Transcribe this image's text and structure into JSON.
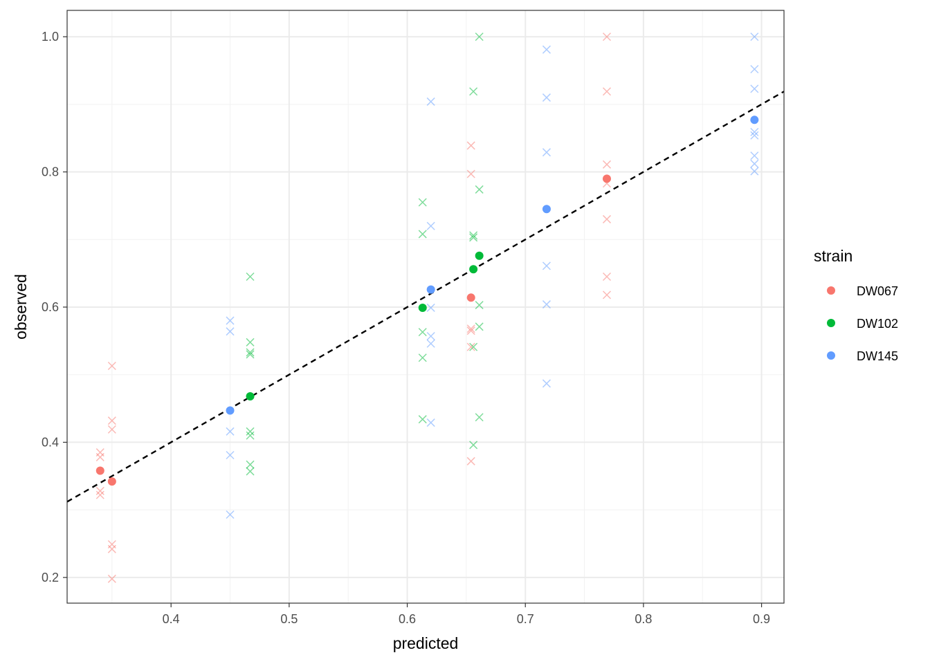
{
  "chart_data": {
    "type": "scatter",
    "title": "",
    "xlabel": "predicted",
    "ylabel": "observed",
    "xlim": [
      0.312,
      0.919
    ],
    "ylim": [
      0.162,
      1.039
    ],
    "x_ticks": [
      {
        "value": 0.4,
        "label": "0.4"
      },
      {
        "value": 0.5,
        "label": "0.5"
      },
      {
        "value": 0.6,
        "label": "0.6"
      },
      {
        "value": 0.7,
        "label": "0.7"
      },
      {
        "value": 0.8,
        "label": "0.8"
      },
      {
        "value": 0.9,
        "label": "0.9"
      }
    ],
    "y_ticks": [
      {
        "value": 0.2,
        "label": "0.2"
      },
      {
        "value": 0.4,
        "label": "0.4"
      },
      {
        "value": 0.6,
        "label": "0.6"
      },
      {
        "value": 0.8,
        "label": "0.8"
      },
      {
        "value": 1.0,
        "label": "1.0"
      }
    ],
    "grid": true,
    "legend": {
      "title": "strain",
      "position": "right"
    },
    "reference_line": {
      "style": "dashed",
      "color": "#000000",
      "slope": 1,
      "intercept": 0
    },
    "series": [
      {
        "name": "DW067",
        "color": "#F8766D",
        "means": [
          [
            0.34,
            0.358
          ],
          [
            0.35,
            0.342
          ],
          [
            0.654,
            0.614
          ],
          [
            0.769,
            0.79
          ]
        ],
        "replicates": [
          [
            0.34,
            0.385
          ],
          [
            0.34,
            0.378
          ],
          [
            0.34,
            0.328
          ],
          [
            0.34,
            0.322
          ],
          [
            0.35,
            0.513
          ],
          [
            0.35,
            0.432
          ],
          [
            0.35,
            0.419
          ],
          [
            0.35,
            0.249
          ],
          [
            0.35,
            0.242
          ],
          [
            0.35,
            0.198
          ],
          [
            0.654,
            0.839
          ],
          [
            0.654,
            0.797
          ],
          [
            0.654,
            0.568
          ],
          [
            0.654,
            0.565
          ],
          [
            0.654,
            0.541
          ],
          [
            0.654,
            0.372
          ],
          [
            0.769,
            1.0
          ],
          [
            0.769,
            0.919
          ],
          [
            0.769,
            0.811
          ],
          [
            0.769,
            0.783
          ],
          [
            0.769,
            0.73
          ],
          [
            0.769,
            0.645
          ],
          [
            0.769,
            0.618
          ]
        ]
      },
      {
        "name": "DW102",
        "color": "#00BA38",
        "means": [
          [
            0.467,
            0.468
          ],
          [
            0.613,
            0.599
          ],
          [
            0.656,
            0.656
          ],
          [
            0.661,
            0.676
          ]
        ],
        "replicates": [
          [
            0.467,
            0.645
          ],
          [
            0.467,
            0.548
          ],
          [
            0.467,
            0.533
          ],
          [
            0.467,
            0.53
          ],
          [
            0.467,
            0.416
          ],
          [
            0.467,
            0.41
          ],
          [
            0.467,
            0.367
          ],
          [
            0.467,
            0.357
          ],
          [
            0.613,
            0.755
          ],
          [
            0.613,
            0.708
          ],
          [
            0.613,
            0.563
          ],
          [
            0.613,
            0.525
          ],
          [
            0.613,
            0.434
          ],
          [
            0.656,
            0.919
          ],
          [
            0.656,
            0.706
          ],
          [
            0.656,
            0.703
          ],
          [
            0.656,
            0.541
          ],
          [
            0.656,
            0.396
          ],
          [
            0.661,
            1.0
          ],
          [
            0.661,
            0.774
          ],
          [
            0.661,
            0.603
          ],
          [
            0.661,
            0.571
          ],
          [
            0.661,
            0.437
          ]
        ]
      },
      {
        "name": "DW145",
        "color": "#619CFF",
        "means": [
          [
            0.45,
            0.447
          ],
          [
            0.62,
            0.626
          ],
          [
            0.718,
            0.745
          ],
          [
            0.894,
            0.877
          ]
        ],
        "replicates": [
          [
            0.45,
            0.58
          ],
          [
            0.45,
            0.564
          ],
          [
            0.45,
            0.416
          ],
          [
            0.45,
            0.381
          ],
          [
            0.45,
            0.293
          ],
          [
            0.62,
            0.904
          ],
          [
            0.62,
            0.72
          ],
          [
            0.62,
            0.599
          ],
          [
            0.62,
            0.557
          ],
          [
            0.62,
            0.546
          ],
          [
            0.62,
            0.429
          ],
          [
            0.718,
            0.981
          ],
          [
            0.718,
            0.91
          ],
          [
            0.718,
            0.829
          ],
          [
            0.718,
            0.661
          ],
          [
            0.718,
            0.604
          ],
          [
            0.718,
            0.487
          ],
          [
            0.894,
            1.0
          ],
          [
            0.894,
            0.952
          ],
          [
            0.894,
            0.923
          ],
          [
            0.894,
            0.859
          ],
          [
            0.894,
            0.854
          ],
          [
            0.894,
            0.824
          ],
          [
            0.894,
            0.812
          ],
          [
            0.894,
            0.801
          ]
        ]
      }
    ]
  }
}
